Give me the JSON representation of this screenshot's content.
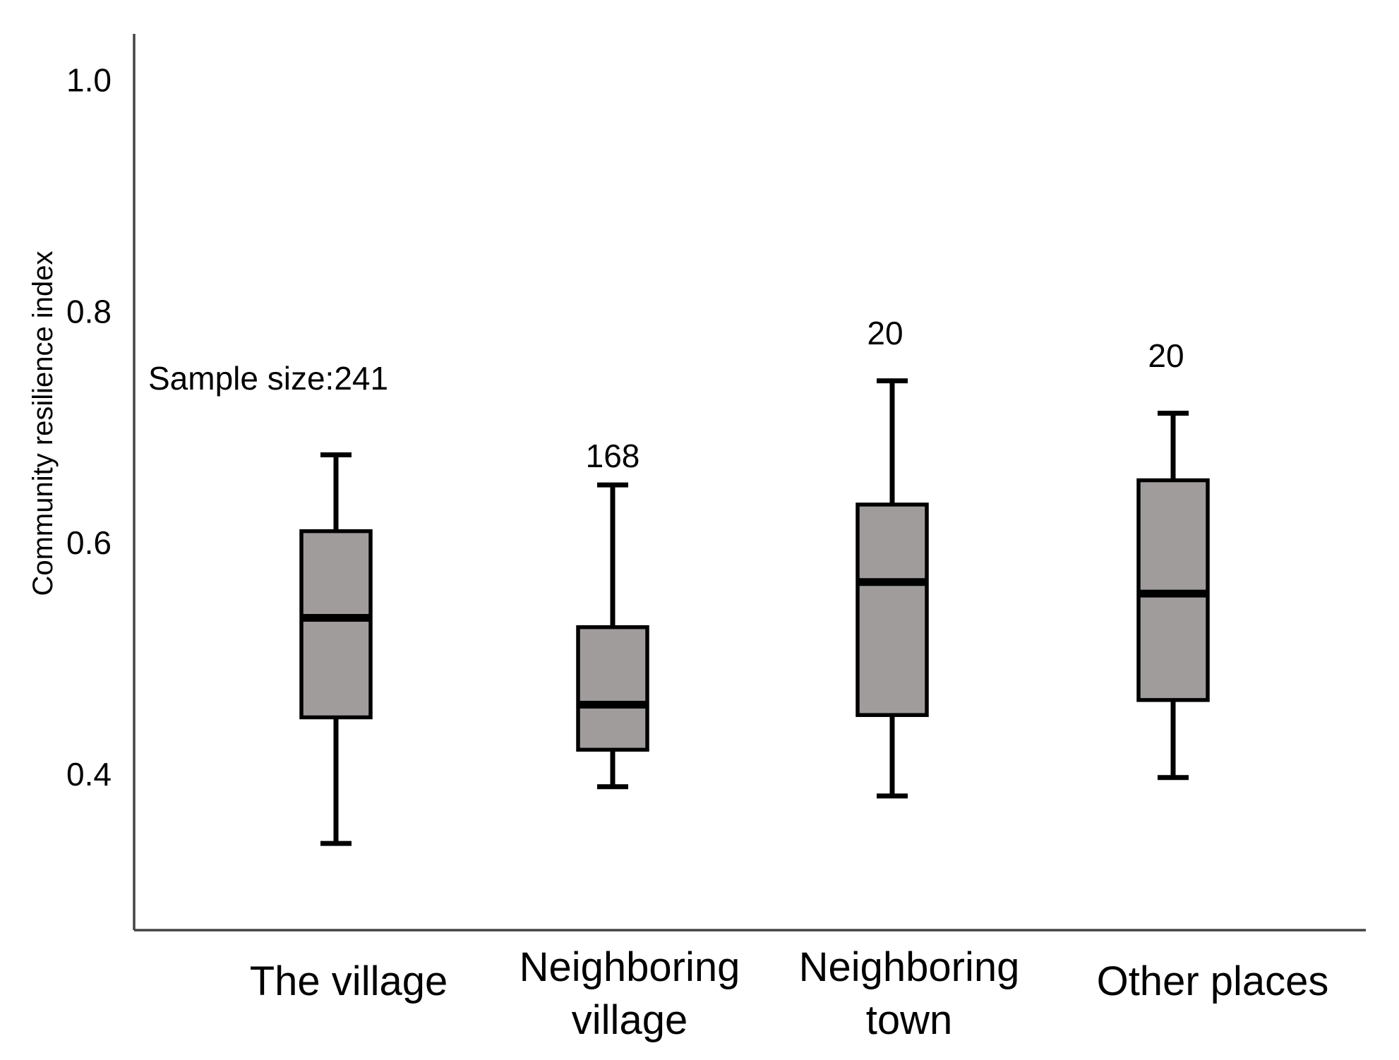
{
  "chart_data": {
    "type": "box",
    "title": "",
    "xlabel": "",
    "ylabel": "Community resilience index",
    "ylim": [
      0.265,
      1.04
    ],
    "yticks": [
      0.4,
      0.6,
      0.8,
      1.0
    ],
    "ytick_labels": [
      "0.4",
      "0.6",
      "0.8",
      "1.0"
    ],
    "grid": false,
    "legend": "none",
    "categories": [
      {
        "name": "The village",
        "label_lines": [
          "The village"
        ],
        "n_label": "Sample size:241",
        "min": 0.34,
        "q1": 0.449,
        "median": 0.535,
        "q3": 0.61,
        "max": 0.676
      },
      {
        "name": "Neighboring village",
        "label_lines": [
          "Neighboring",
          "village"
        ],
        "n_label": "168",
        "min": 0.389,
        "q1": 0.421,
        "median": 0.46,
        "q3": 0.527,
        "max": 0.65
      },
      {
        "name": "Neighboring town",
        "label_lines": [
          "Neighboring",
          "town"
        ],
        "n_label": "20",
        "min": 0.381,
        "q1": 0.451,
        "median": 0.566,
        "q3": 0.633,
        "max": 0.74
      },
      {
        "name": "Other places",
        "label_lines": [
          "Other places"
        ],
        "n_label": "20",
        "min": 0.397,
        "q1": 0.464,
        "median": 0.556,
        "q3": 0.654,
        "max": 0.712
      }
    ]
  }
}
